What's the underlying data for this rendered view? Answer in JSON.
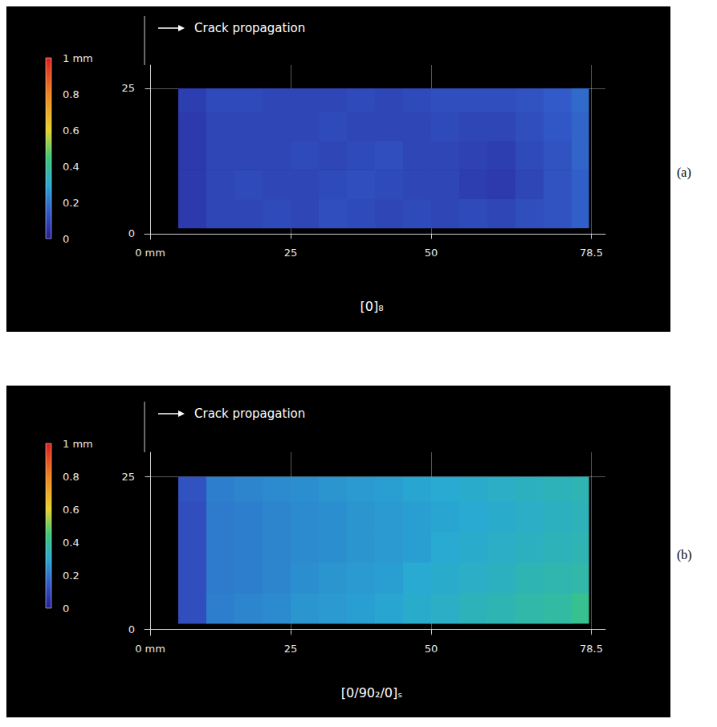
{
  "chart_data": [
    {
      "type": "heatmap",
      "panel": "(a)",
      "annotation": "Crack propagation",
      "title": "[0]₈",
      "xlim": [
        -1,
        81
      ],
      "ylim": [
        -1,
        29
      ],
      "xticks": [
        {
          "value": 0,
          "label": "0 mm"
        },
        25,
        50,
        78.5
      ],
      "yticks": [
        0,
        25
      ],
      "grid": true,
      "x_edges": [
        5,
        10,
        15,
        20,
        25,
        30,
        35,
        40,
        45,
        50,
        55,
        60,
        65,
        70,
        75,
        78
      ],
      "y_edges": [
        1,
        6,
        11,
        16,
        21,
        25
      ],
      "cells": [
        [
          0.07,
          0.1,
          0.1,
          0.11,
          0.1,
          0.12,
          0.11,
          0.1,
          0.11,
          0.1,
          0.11,
          0.1,
          0.12,
          0.13,
          0.16
        ],
        [
          0.07,
          0.1,
          0.11,
          0.1,
          0.1,
          0.11,
          0.12,
          0.11,
          0.1,
          0.1,
          0.08,
          0.07,
          0.1,
          0.13,
          0.16
        ],
        [
          0.07,
          0.1,
          0.1,
          0.1,
          0.11,
          0.1,
          0.11,
          0.12,
          0.1,
          0.1,
          0.09,
          0.08,
          0.11,
          0.13,
          0.17
        ],
        [
          0.07,
          0.1,
          0.1,
          0.1,
          0.1,
          0.11,
          0.1,
          0.1,
          0.1,
          0.11,
          0.1,
          0.1,
          0.12,
          0.14,
          0.17
        ],
        [
          0.08,
          0.11,
          0.11,
          0.1,
          0.1,
          0.1,
          0.11,
          0.1,
          0.11,
          0.12,
          0.12,
          0.12,
          0.13,
          0.15,
          0.18
        ]
      ],
      "colorbar_range": [
        0,
        1
      ],
      "colorbar_ticks": [
        0,
        0.2,
        0.4,
        0.6,
        0.8,
        {
          "value": 1,
          "label": "1 mm"
        }
      ]
    },
    {
      "type": "heatmap",
      "panel": "(b)",
      "annotation": "Crack propagation",
      "title": "[0/90₂/0]ₛ",
      "xlim": [
        -1,
        81
      ],
      "ylim": [
        -1,
        29
      ],
      "xticks": [
        {
          "value": 0,
          "label": "0 mm"
        },
        25,
        50,
        78.5
      ],
      "yticks": [
        0,
        25
      ],
      "grid": true,
      "x_edges": [
        5,
        10,
        15,
        20,
        25,
        30,
        35,
        40,
        45,
        50,
        55,
        60,
        65,
        70,
        75,
        78
      ],
      "y_edges": [
        1,
        6,
        11,
        16,
        21,
        25
      ],
      "cells": [
        [
          0.12,
          0.22,
          0.23,
          0.24,
          0.26,
          0.27,
          0.28,
          0.29,
          0.31,
          0.32,
          0.34,
          0.35,
          0.37,
          0.38,
          0.41
        ],
        [
          0.12,
          0.21,
          0.22,
          0.23,
          0.25,
          0.26,
          0.27,
          0.28,
          0.3,
          0.31,
          0.32,
          0.33,
          0.35,
          0.36,
          0.37
        ],
        [
          0.12,
          0.21,
          0.22,
          0.23,
          0.24,
          0.25,
          0.26,
          0.27,
          0.28,
          0.3,
          0.31,
          0.32,
          0.33,
          0.34,
          0.35
        ],
        [
          0.12,
          0.21,
          0.22,
          0.23,
          0.24,
          0.25,
          0.26,
          0.27,
          0.28,
          0.29,
          0.3,
          0.31,
          0.32,
          0.33,
          0.34
        ],
        [
          0.13,
          0.22,
          0.23,
          0.24,
          0.25,
          0.26,
          0.27,
          0.28,
          0.29,
          0.3,
          0.31,
          0.32,
          0.33,
          0.34,
          0.35
        ]
      ],
      "colorbar_range": [
        0,
        1
      ],
      "colorbar_ticks": [
        0,
        0.2,
        0.4,
        0.6,
        0.8,
        {
          "value": 1,
          "label": "1 mm"
        }
      ]
    }
  ]
}
